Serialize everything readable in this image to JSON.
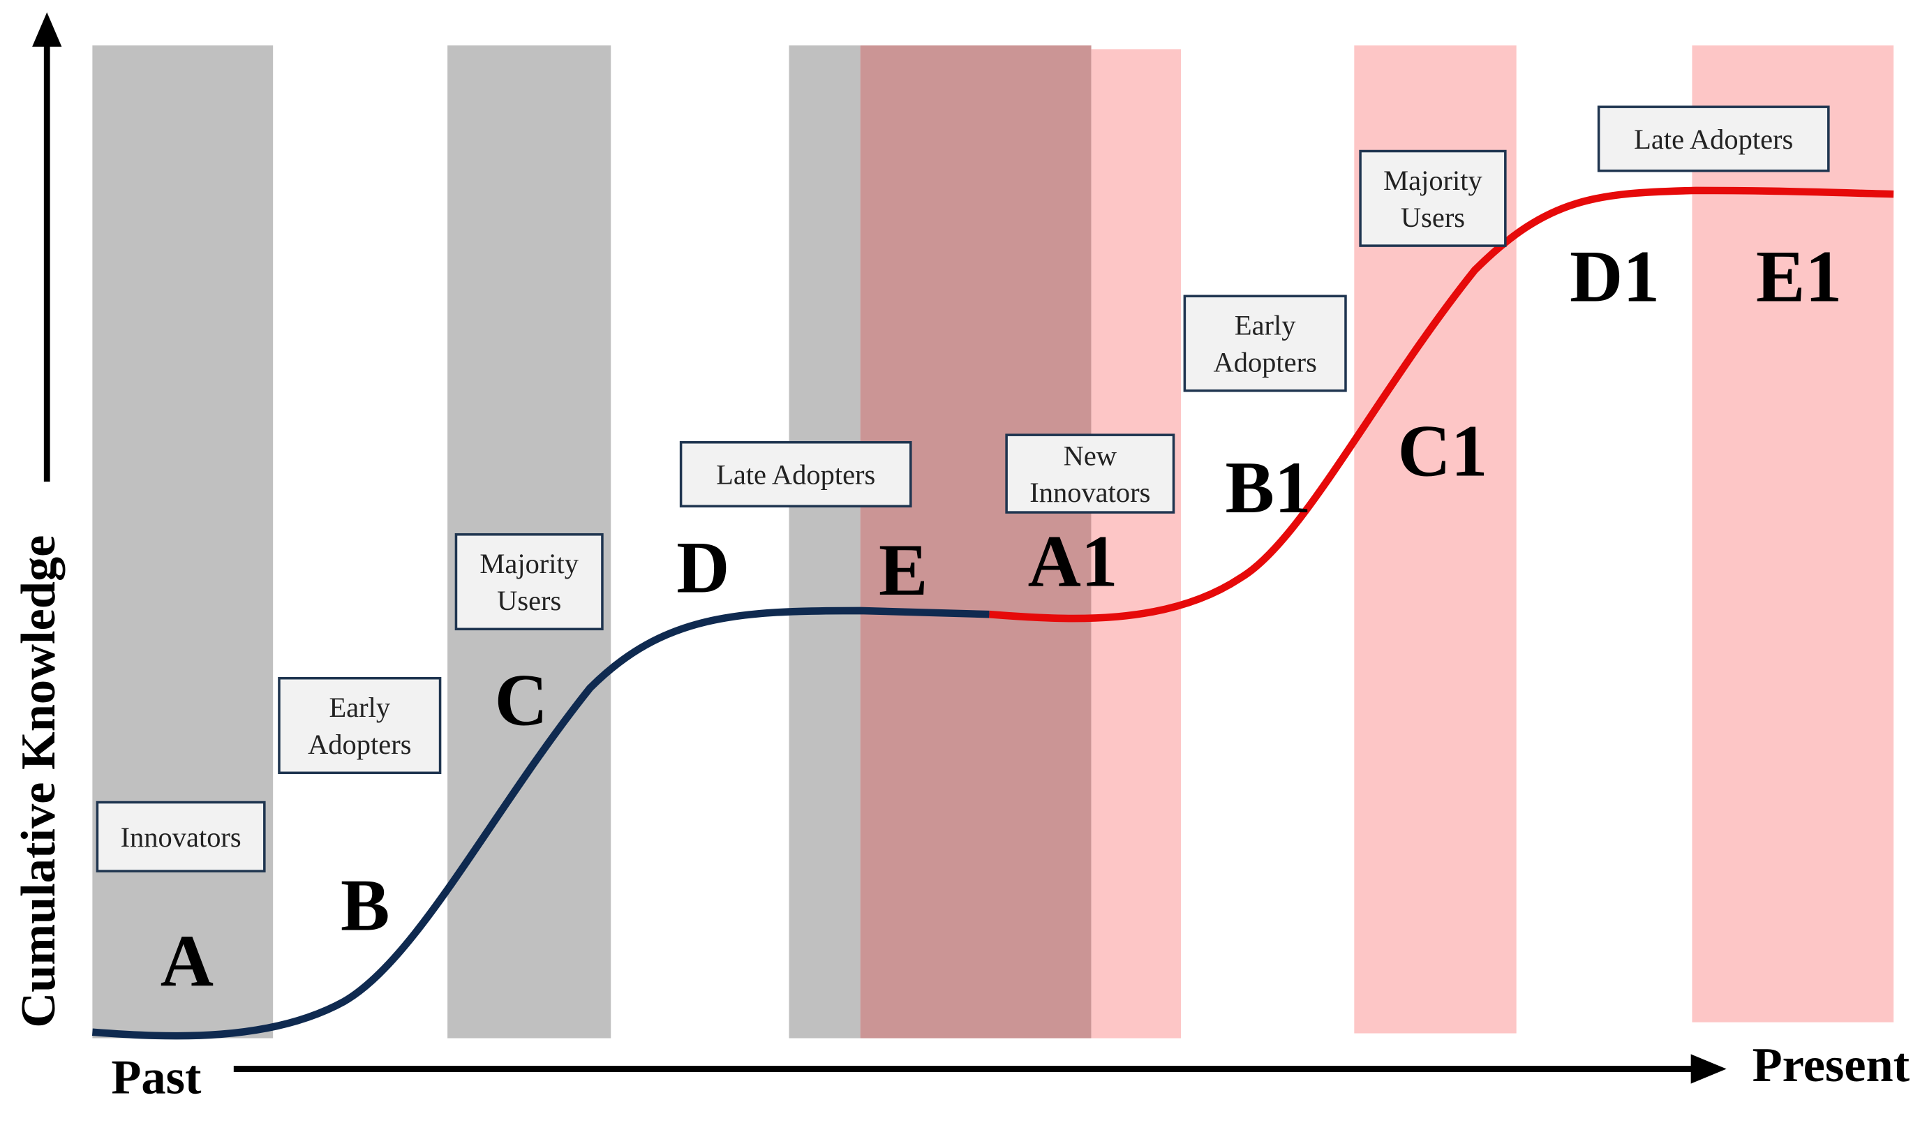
{
  "axes": {
    "y_label": "Cumulative Knowledge",
    "x_start": "Past",
    "x_end": "Present"
  },
  "stages": [
    {
      "letter": "A",
      "box_lines": [
        "Innovators"
      ]
    },
    {
      "letter": "B",
      "box_lines": [
        "Early",
        "Adopters"
      ]
    },
    {
      "letter": "C",
      "box_lines": [
        "Majority",
        "Users"
      ]
    },
    {
      "letter": "D",
      "box_lines": [
        "Late Adopters"
      ]
    },
    {
      "letter": "E"
    },
    {
      "letter": "A1",
      "box_lines": [
        "New",
        "Innovators"
      ]
    },
    {
      "letter": "B1",
      "box_lines": [
        "Early",
        "Adopters"
      ]
    },
    {
      "letter": "C1",
      "box_lines": [
        "Majority",
        "Users"
      ]
    },
    {
      "letter": "D1",
      "box_lines": [
        "Late Adopters"
      ]
    },
    {
      "letter": "E1"
    }
  ]
}
